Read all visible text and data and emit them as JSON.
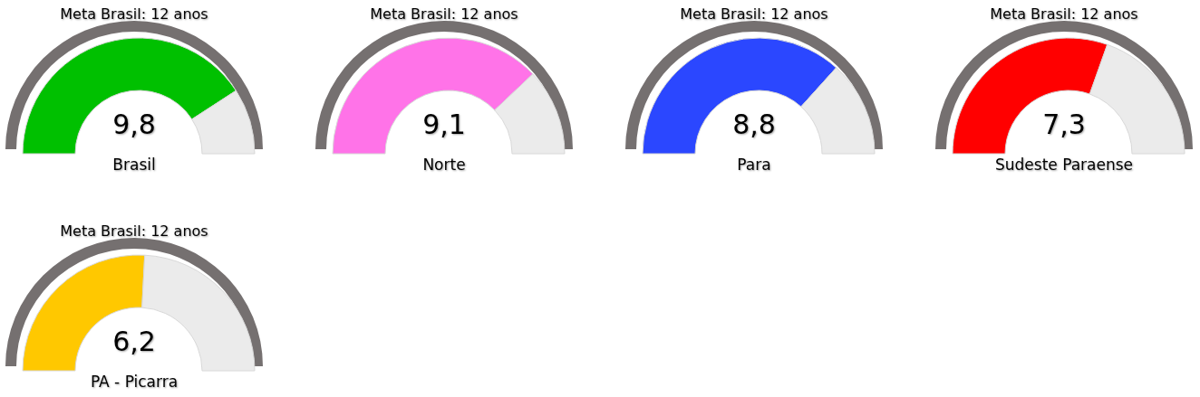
{
  "chart_data": [
    {
      "type": "donut",
      "title": "Meta Brasil: 12 anos",
      "xlabel": "Brasil",
      "categories": [
        null,
        null
      ],
      "values": [
        9.8,
        2.2
      ],
      "colors": [
        "#00c000",
        "#ebebeb"
      ],
      "value_labels": [
        "9,8",
        null
      ]
    },
    {
      "type": "donut",
      "title": "Meta Brasil: 12 anos",
      "xlabel": "Norte",
      "categories": [
        null,
        null
      ],
      "values": [
        9.1,
        2.9
      ],
      "colors": [
        "#ff73e8",
        "#ebebeb"
      ],
      "value_labels": [
        "9,1",
        null
      ]
    },
    {
      "type": "donut",
      "title": "Meta Brasil: 12 anos",
      "xlabel": "Para",
      "categories": [
        null,
        null
      ],
      "values": [
        8.8,
        3.2
      ],
      "colors": [
        "#2b47ff",
        "#ebebeb"
      ],
      "value_labels": [
        "8,8",
        null
      ]
    },
    {
      "type": "donut",
      "title": "Meta Brasil: 12 anos",
      "xlabel": "Sudeste Paraense",
      "categories": [
        null,
        null
      ],
      "values": [
        7.3,
        4.7
      ],
      "colors": [
        "#ff0000",
        "#ebebeb"
      ],
      "value_labels": [
        "7,3",
        null
      ]
    },
    {
      "type": "donut",
      "title": "Meta Brasil: 12 anos",
      "xlabel": "PA - Picarra",
      "categories": [
        null,
        null
      ],
      "values": [
        6.2,
        5.8
      ],
      "colors": [
        "#ffc800",
        "#ebebeb"
      ],
      "value_labels": [
        "6,2",
        null
      ]
    }
  ]
}
